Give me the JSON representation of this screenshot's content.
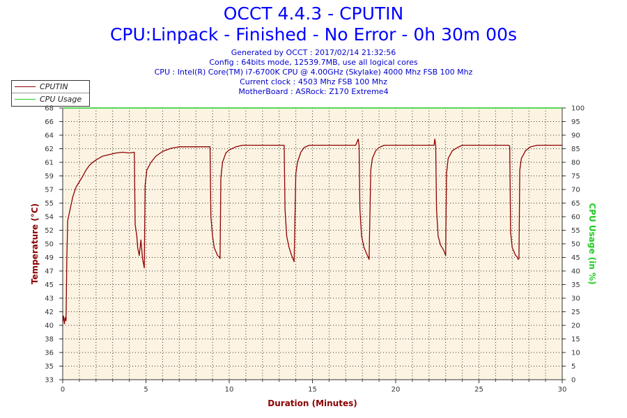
{
  "header": {
    "title": "OCCT 4.4.3 - CPUTIN",
    "subtitle": "CPU:Linpack - Finished - No Error - 0h 30m 00s",
    "info_lines": [
      "Generated by OCCT : 2017/02/14 21:32:56",
      "Config : 64bits mode, 12539.7MB, use all logical cores",
      "CPU : Intel(R) Core(TM) i7-6700K CPU @ 4.00GHz (Skylake) 4000 Mhz FSB 100 Mhz",
      "Current clock : 4503 Mhz FSB 100 Mhz",
      "MotherBoard : ASRock: Z170 Extreme4"
    ]
  },
  "legend": {
    "items": [
      {
        "label": "CPUTIN",
        "color": "#8b0000"
      },
      {
        "label": "CPU Usage",
        "color": "#22cc22"
      }
    ]
  },
  "colors": {
    "temp": "#8b0000",
    "usage": "#22cc22",
    "plot_bg": "#fdf3e2",
    "axis_label": "#8b0000",
    "usage_label": "#22cc22"
  },
  "chart_data": {
    "type": "line",
    "title": "OCCT 4.4.3 - CPUTIN",
    "xlabel": "Duration (Minutes)",
    "ylabel_left": "Temperature (°C)",
    "ylabel_right": "CPU Usage (in %)",
    "xlim": [
      0,
      30
    ],
    "ylim_left": [
      33,
      68
    ],
    "ylim_right": [
      0,
      100
    ],
    "x_ticks": [
      0,
      5,
      10,
      15,
      20,
      25,
      30
    ],
    "y_left_ticks": [
      33,
      35,
      36,
      38,
      40,
      42,
      43,
      45,
      47,
      49,
      50,
      52,
      54,
      55,
      57,
      59,
      61,
      62,
      64,
      66,
      68
    ],
    "y_right_ticks": [
      0,
      5,
      10,
      15,
      20,
      25,
      30,
      35,
      40,
      45,
      50,
      55,
      60,
      65,
      70,
      75,
      80,
      85,
      90,
      95,
      100
    ],
    "grid": true,
    "series": [
      {
        "name": "CPUTIN",
        "axis": "left",
        "points": [
          [
            0.0,
            40.5
          ],
          [
            0.05,
            41.2
          ],
          [
            0.1,
            40.2
          ],
          [
            0.15,
            41.0
          ],
          [
            0.2,
            40.6
          ],
          [
            0.25,
            49.0
          ],
          [
            0.3,
            53.5
          ],
          [
            0.4,
            54.5
          ],
          [
            0.5,
            55.5
          ],
          [
            0.6,
            56.5
          ],
          [
            0.8,
            57.8
          ],
          [
            1.0,
            58.5
          ],
          [
            1.2,
            59.2
          ],
          [
            1.4,
            60.0
          ],
          [
            1.6,
            60.6
          ],
          [
            1.8,
            61.0
          ],
          [
            2.0,
            61.3
          ],
          [
            2.4,
            61.8
          ],
          [
            2.8,
            62.0
          ],
          [
            3.2,
            62.2
          ],
          [
            3.6,
            62.3
          ],
          [
            4.0,
            62.2
          ],
          [
            4.3,
            62.3
          ],
          [
            4.35,
            53.0
          ],
          [
            4.45,
            51.5
          ],
          [
            4.5,
            50.0
          ],
          [
            4.6,
            49.0
          ],
          [
            4.7,
            51.0
          ],
          [
            4.8,
            48.5
          ],
          [
            4.85,
            48.0
          ],
          [
            4.9,
            47.4
          ],
          [
            4.95,
            58.0
          ],
          [
            5.05,
            60.0
          ],
          [
            5.3,
            61.0
          ],
          [
            5.6,
            61.8
          ],
          [
            6.0,
            62.4
          ],
          [
            6.5,
            62.8
          ],
          [
            7.0,
            63.0
          ],
          [
            8.5,
            63.0
          ],
          [
            8.85,
            63.0
          ],
          [
            8.9,
            54.0
          ],
          [
            9.0,
            51.5
          ],
          [
            9.1,
            50.0
          ],
          [
            9.2,
            49.5
          ],
          [
            9.3,
            49.0
          ],
          [
            9.4,
            48.8
          ],
          [
            9.45,
            48.6
          ],
          [
            9.5,
            59.0
          ],
          [
            9.6,
            61.0
          ],
          [
            9.8,
            62.2
          ],
          [
            10.0,
            62.6
          ],
          [
            10.4,
            63.0
          ],
          [
            10.8,
            63.2
          ],
          [
            13.3,
            63.2
          ],
          [
            13.35,
            55.0
          ],
          [
            13.45,
            51.5
          ],
          [
            13.6,
            50.0
          ],
          [
            13.75,
            49.0
          ],
          [
            13.85,
            48.5
          ],
          [
            13.9,
            48.2
          ],
          [
            14.0,
            59.5
          ],
          [
            14.1,
            61.0
          ],
          [
            14.3,
            62.3
          ],
          [
            14.5,
            62.9
          ],
          [
            14.8,
            63.2
          ],
          [
            17.6,
            63.2
          ],
          [
            17.75,
            64.0
          ],
          [
            17.8,
            63.2
          ],
          [
            17.85,
            55.0
          ],
          [
            17.95,
            51.5
          ],
          [
            18.1,
            50.0
          ],
          [
            18.3,
            49.0
          ],
          [
            18.4,
            48.5
          ],
          [
            18.5,
            60.0
          ],
          [
            18.6,
            61.5
          ],
          [
            18.8,
            62.5
          ],
          [
            19.0,
            62.9
          ],
          [
            19.3,
            63.2
          ],
          [
            22.3,
            63.2
          ],
          [
            22.35,
            64.0
          ],
          [
            22.4,
            63.2
          ],
          [
            22.45,
            55.0
          ],
          [
            22.55,
            51.5
          ],
          [
            22.7,
            50.3
          ],
          [
            22.85,
            49.8
          ],
          [
            22.95,
            49.3
          ],
          [
            23.0,
            49.0
          ],
          [
            23.05,
            59.5
          ],
          [
            23.15,
            61.5
          ],
          [
            23.4,
            62.5
          ],
          [
            23.7,
            62.9
          ],
          [
            24.0,
            63.2
          ],
          [
            26.8,
            63.2
          ],
          [
            26.85,
            63.0
          ],
          [
            26.9,
            52.0
          ],
          [
            27.0,
            50.0
          ],
          [
            27.1,
            49.5
          ],
          [
            27.2,
            49.0
          ],
          [
            27.3,
            48.8
          ],
          [
            27.35,
            48.5
          ],
          [
            27.4,
            48.6
          ],
          [
            27.45,
            60.0
          ],
          [
            27.55,
            61.5
          ],
          [
            27.8,
            62.5
          ],
          [
            28.1,
            63.0
          ],
          [
            28.5,
            63.2
          ],
          [
            30.0,
            63.2
          ]
        ]
      },
      {
        "name": "CPU Usage",
        "axis": "right",
        "points": [
          [
            0,
            100
          ],
          [
            30,
            100
          ]
        ]
      }
    ]
  }
}
